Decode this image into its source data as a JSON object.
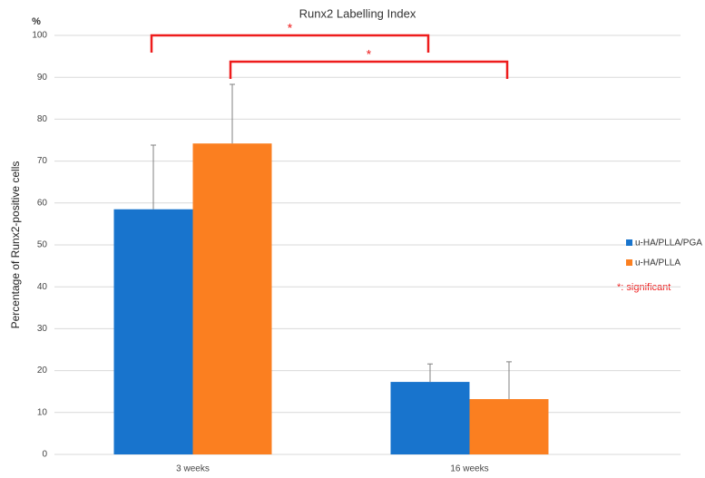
{
  "chart_data": {
    "type": "bar",
    "title": "Runx2 Labelling Index",
    "y_unit": "%",
    "y_label": "Percentage of Runx2-positive cells",
    "categories": [
      "3 weeks",
      "16 weeks"
    ],
    "series": [
      {
        "name": "u-HA/PLLA/PGA",
        "color": "#1874cd",
        "values": [
          58.5,
          17.3
        ],
        "errors": [
          15.3,
          4.3
        ]
      },
      {
        "name": "u-HA/PLLA",
        "color": "#fb7f20",
        "values": [
          74.2,
          13.2
        ],
        "errors": [
          14.1,
          8.9
        ]
      }
    ],
    "ylim": [
      0,
      100
    ],
    "yticks": [
      0,
      10,
      20,
      30,
      40,
      50,
      60,
      70,
      80,
      90,
      100
    ],
    "grid": true,
    "annotations": [
      "*",
      "*",
      "*: significant"
    ]
  }
}
